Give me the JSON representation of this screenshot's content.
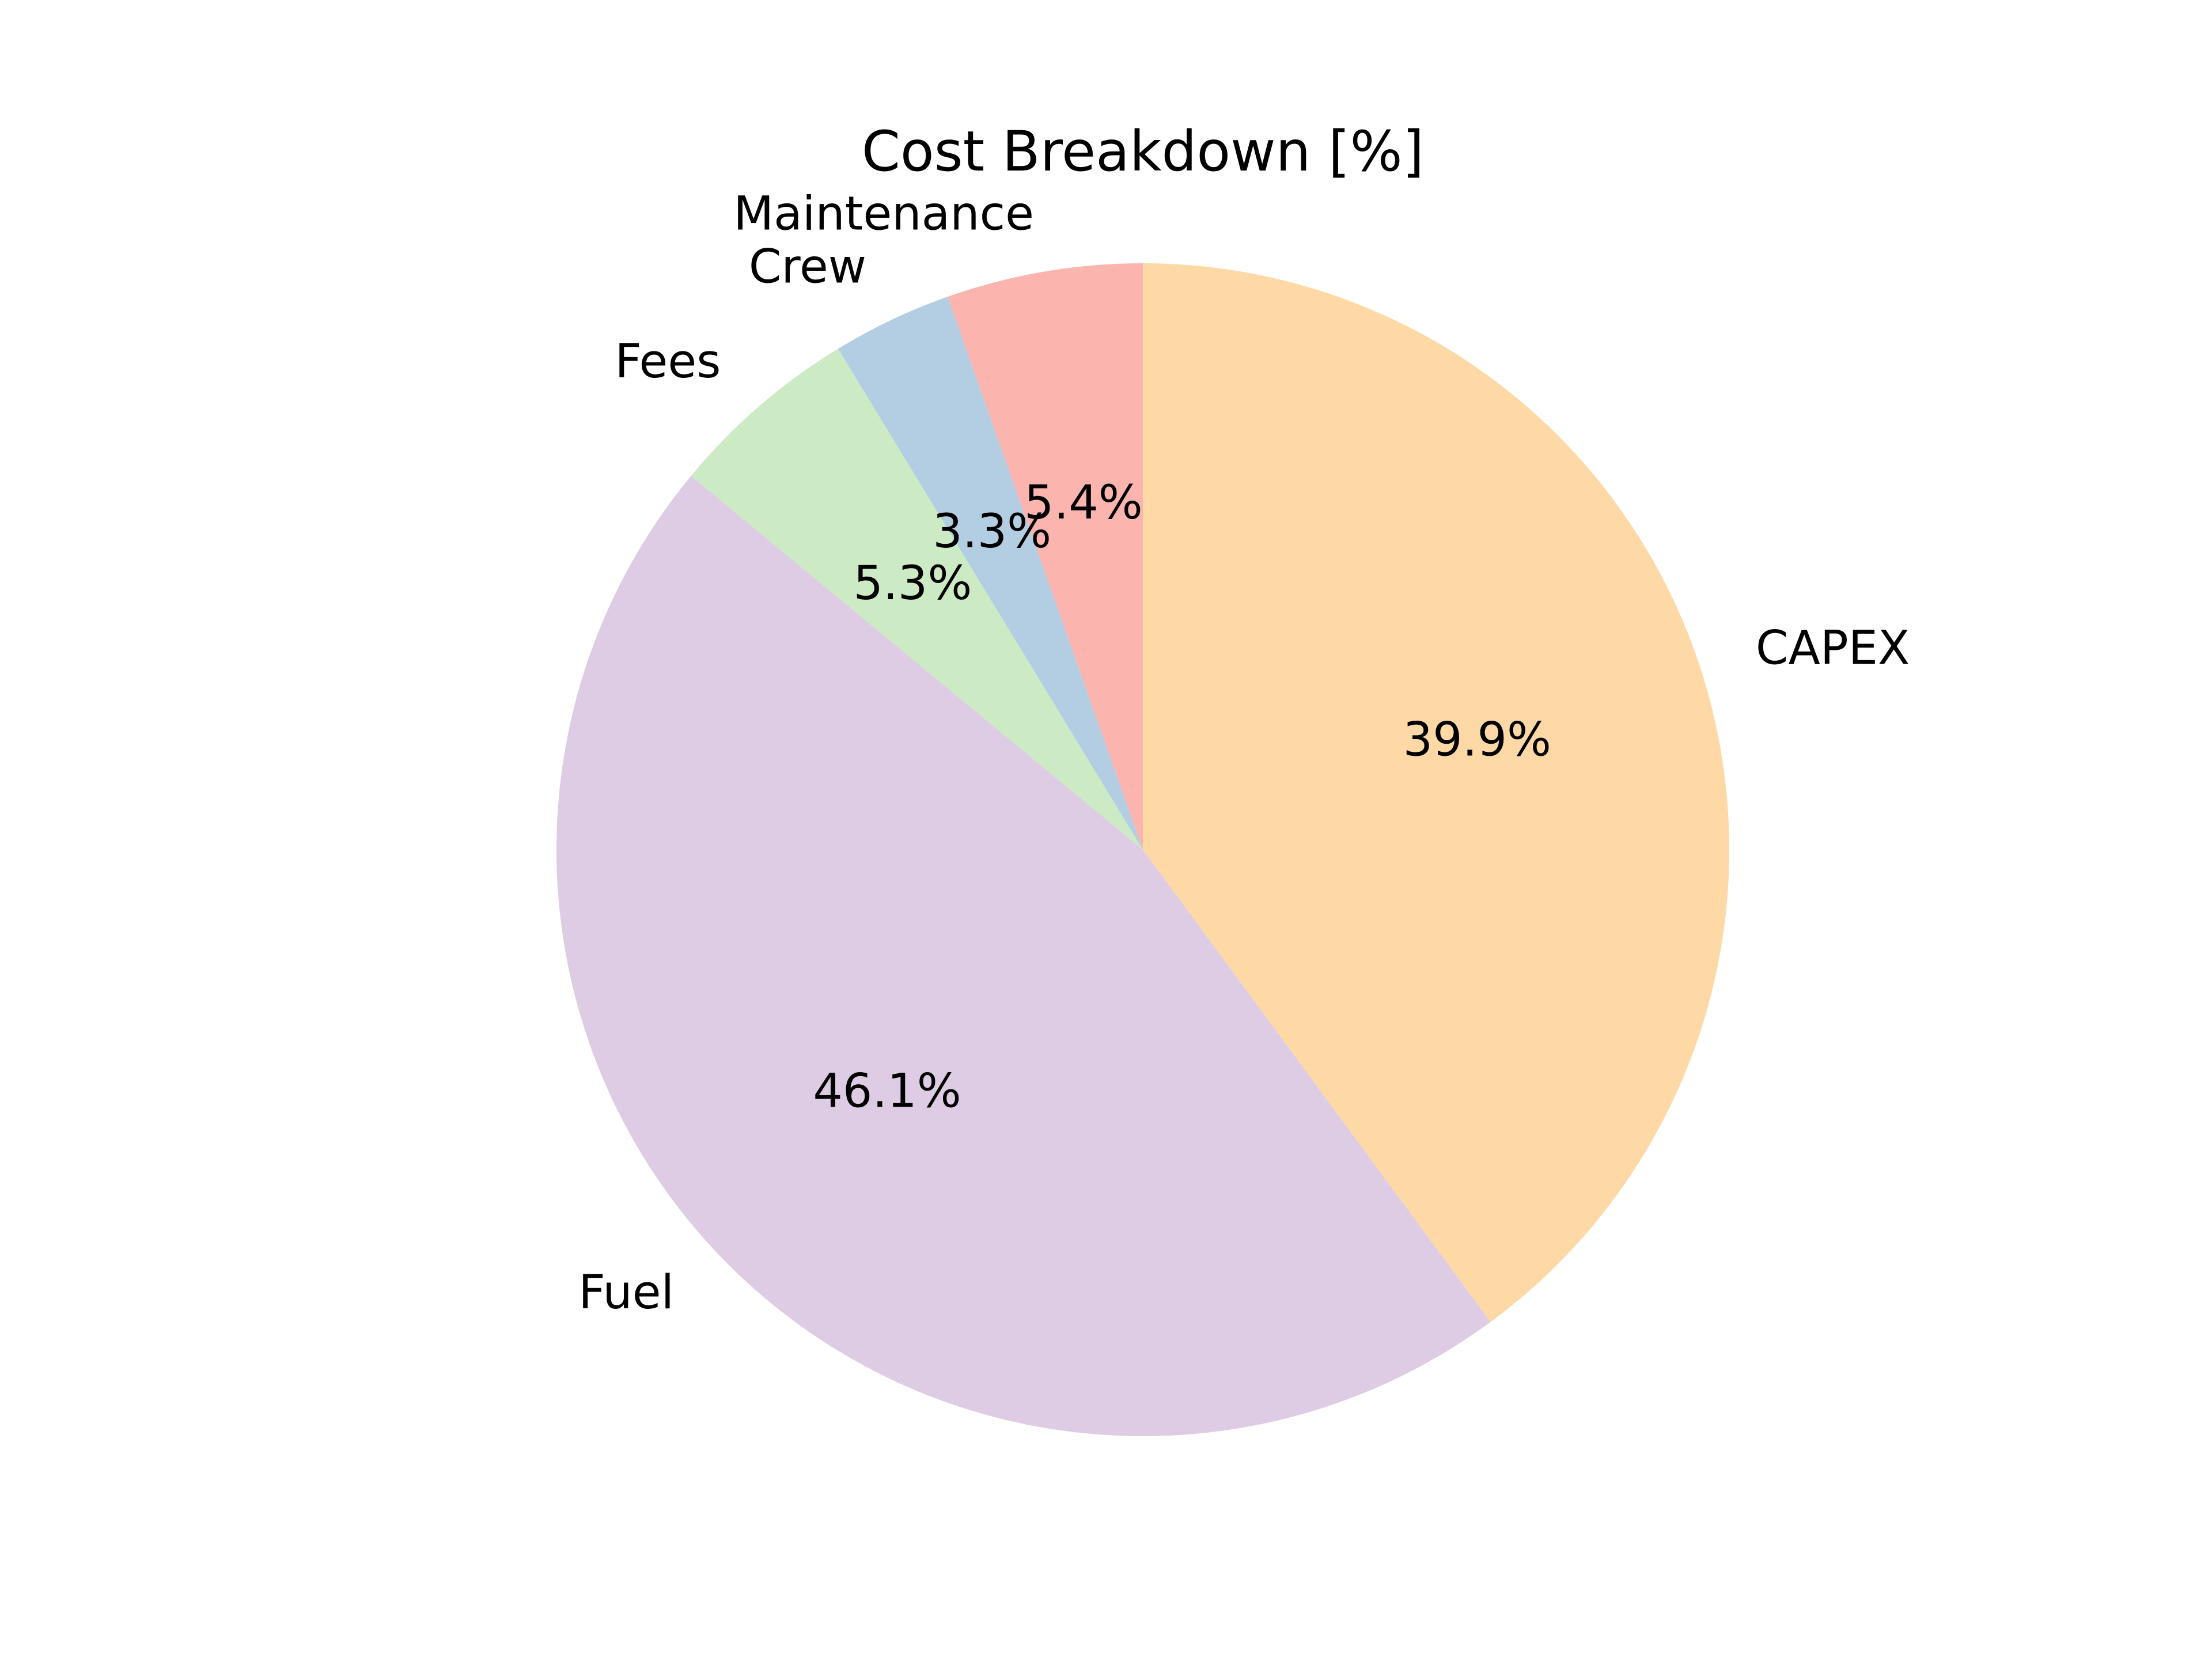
{
  "chart_data": {
    "type": "pie",
    "title": "Cost Breakdown [%]",
    "start_angle_deg": 90,
    "direction": "clockwise",
    "slices": [
      {
        "label": "CAPEX",
        "value": 39.9,
        "pct_label": "39.9%",
        "color": "#fed9a6"
      },
      {
        "label": "Fuel",
        "value": 46.1,
        "pct_label": "46.1%",
        "color": "#decbe4"
      },
      {
        "label": "Fees",
        "value": 5.3,
        "pct_label": "5.3%",
        "color": "#ccebc5"
      },
      {
        "label": "Crew",
        "value": 3.3,
        "pct_label": "3.3%",
        "color": "#b3cde3"
      },
      {
        "label": "Maintenance",
        "value": 5.4,
        "pct_label": "5.4%",
        "color": "#fbb4ae"
      }
    ]
  }
}
